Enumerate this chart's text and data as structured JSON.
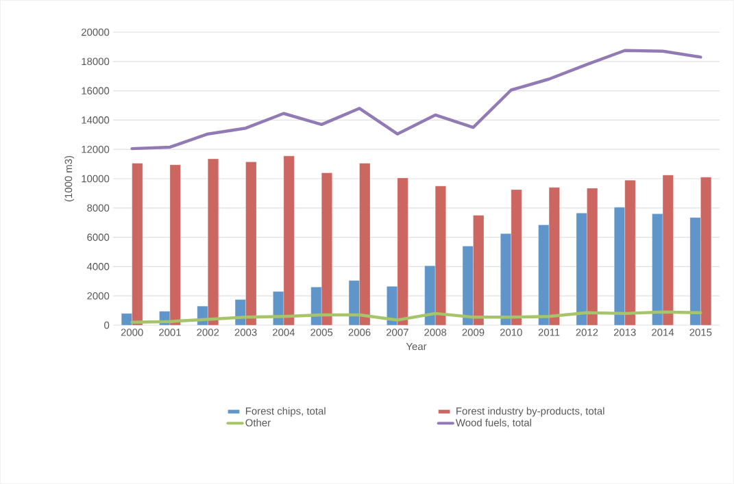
{
  "chart_data": {
    "type": "bar",
    "xlabel": "Year",
    "ylabel": "(1000 m3)",
    "categories": [
      "2000",
      "2001",
      "2002",
      "2003",
      "2004",
      "2005",
      "2006",
      "2007",
      "2008",
      "2009",
      "2010",
      "2011",
      "2012",
      "2013",
      "2014",
      "2015"
    ],
    "series": [
      {
        "name": "Forest chips, total",
        "color": "#5f95c8",
        "values": [
          800,
          950,
          1300,
          1750,
          2300,
          2600,
          3050,
          2650,
          4050,
          5400,
          6250,
          6850,
          7650,
          8050,
          7600,
          7350
        ]
      },
      {
        "name": "Forest industry by-products, total",
        "color": "#cc6660",
        "values": [
          11050,
          10950,
          11350,
          11150,
          11550,
          10400,
          11050,
          10050,
          9500,
          7500,
          9250,
          9400,
          9350,
          9900,
          10250,
          10100
        ]
      },
      {
        "name": "Other",
        "type": "line",
        "color": "#a6c46a",
        "values": [
          200,
          250,
          400,
          550,
          600,
          700,
          700,
          350,
          800,
          550,
          550,
          600,
          850,
          800,
          900,
          850
        ]
      },
      {
        "name": "Wood fuels, total",
        "type": "line",
        "color": "#927bb4",
        "values": [
          12050,
          12150,
          13050,
          13450,
          14450,
          13700,
          14800,
          13050,
          14350,
          13500,
          16050,
          16800,
          17800,
          18750,
          18700,
          18300
        ]
      }
    ],
    "ylim": [
      0,
      20000
    ],
    "yticks": [
      0,
      2000,
      4000,
      6000,
      8000,
      10000,
      12000,
      14000,
      16000,
      18000,
      20000
    ],
    "grid": "y",
    "legend": "bottom",
    "marker": "none",
    "line_style": "solid"
  }
}
